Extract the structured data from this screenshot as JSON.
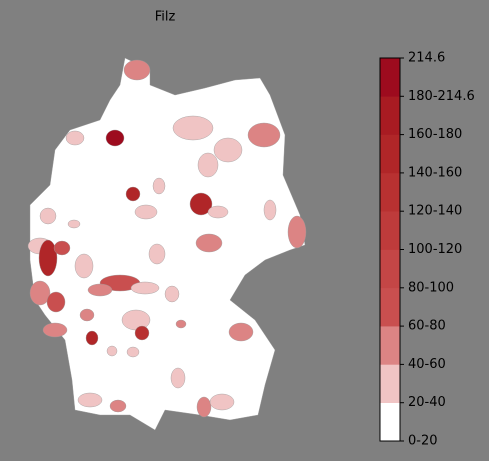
{
  "title": "Filz",
  "colorbar": {
    "labels": [
      "0-20",
      "20-40",
      "40-60",
      "60-80",
      "80-100",
      "100-120",
      "120-140",
      "140-160",
      "160-180",
      "180-214.6",
      "214.6"
    ],
    "colors": [
      "#ffffff",
      "#f0c4c4",
      "#dc8484",
      "#c94f4f",
      "#c44646",
      "#be3b3b",
      "#b83131",
      "#b02628",
      "#a81b22",
      "#9d0b1e"
    ]
  }
}
